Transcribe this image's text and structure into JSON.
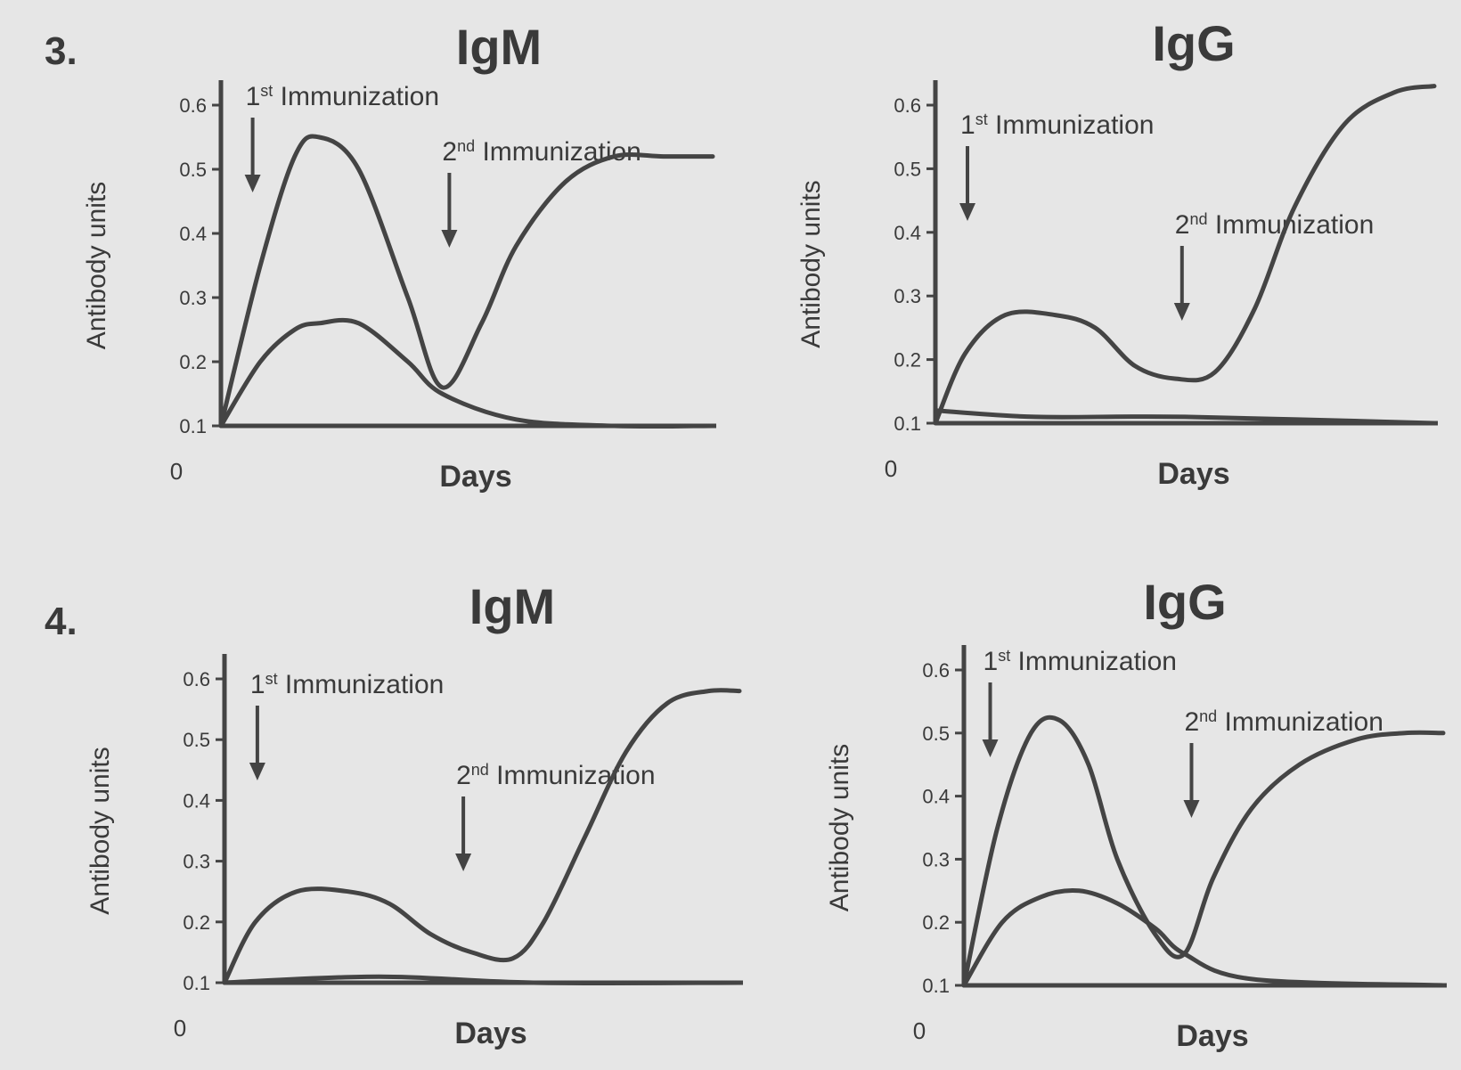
{
  "chart_data": [
    {
      "type": "line",
      "question_number": "3.",
      "title": "IgM",
      "xlabel": "Days",
      "ylabel": "Antibody units",
      "x_tick_labels": [
        "0"
      ],
      "y_ticks": [
        "0.1",
        "0.2",
        "0.3",
        "0.4",
        "0.5",
        "0.6"
      ],
      "ylim": [
        0.1,
        0.6
      ],
      "xlim": [
        0,
        100
      ],
      "annotations": [
        {
          "text": "1st Immunization",
          "x": 5
        },
        {
          "text": "2nd Immunization",
          "x": 45
        }
      ],
      "series": [
        {
          "x": [
            0,
            8,
            15,
            20,
            28,
            38,
            45,
            53,
            60,
            70,
            80,
            90,
            100
          ],
          "y": [
            0.1,
            0.35,
            0.52,
            0.55,
            0.5,
            0.3,
            0.16,
            0.26,
            0.38,
            0.48,
            0.52,
            0.52,
            0.52
          ]
        },
        {
          "x": [
            0,
            8,
            15,
            20,
            28,
            38,
            45,
            60,
            80,
            100
          ],
          "y": [
            0.1,
            0.2,
            0.25,
            0.26,
            0.26,
            0.2,
            0.15,
            0.11,
            0.1,
            0.1
          ]
        }
      ]
    },
    {
      "type": "line",
      "title": "IgG",
      "xlabel": "Days",
      "ylabel": "Antibody units",
      "x_tick_labels": [
        "0"
      ],
      "y_ticks": [
        "0.1",
        "0.2",
        "0.3",
        "0.4",
        "0.5",
        "0.6"
      ],
      "ylim": [
        0.1,
        0.6
      ],
      "xlim": [
        0,
        100
      ],
      "annotations": [
        {
          "text": "1st Immunization",
          "x": 5
        },
        {
          "text": "2nd Immunization",
          "x": 48
        }
      ],
      "series": [
        {
          "x": [
            0,
            6,
            14,
            24,
            32,
            40,
            48,
            56,
            64,
            72,
            82,
            92,
            100
          ],
          "y": [
            0.1,
            0.21,
            0.27,
            0.27,
            0.25,
            0.19,
            0.17,
            0.18,
            0.28,
            0.44,
            0.57,
            0.62,
            0.63
          ]
        },
        {
          "x": [
            0,
            20,
            50,
            100
          ],
          "y": [
            0.12,
            0.11,
            0.11,
            0.1
          ]
        }
      ]
    },
    {
      "type": "line",
      "question_number": "4.",
      "title": "IgM",
      "xlabel": "Days",
      "ylabel": "Antibody units",
      "x_tick_labels": [
        "0"
      ],
      "y_ticks": [
        "0.1",
        "0.2",
        "0.3",
        "0.4",
        "0.5",
        "0.6"
      ],
      "ylim": [
        0.1,
        0.6
      ],
      "xlim": [
        0,
        100
      ],
      "annotations": [
        {
          "text": "1st Immunization",
          "x": 5
        },
        {
          "text": "2nd Immunization",
          "x": 45
        }
      ],
      "series": [
        {
          "x": [
            0,
            6,
            14,
            24,
            32,
            40,
            48,
            56,
            62,
            70,
            78,
            86,
            94,
            100
          ],
          "y": [
            0.1,
            0.2,
            0.25,
            0.25,
            0.23,
            0.18,
            0.15,
            0.14,
            0.2,
            0.34,
            0.48,
            0.56,
            0.58,
            0.58
          ]
        },
        {
          "x": [
            0,
            30,
            60,
            100
          ],
          "y": [
            0.1,
            0.11,
            0.1,
            0.1
          ]
        }
      ]
    },
    {
      "type": "line",
      "title": "IgG",
      "xlabel": "Days",
      "ylabel": "Antibody units",
      "x_tick_labels": [
        "0"
      ],
      "y_ticks": [
        "0.1",
        "0.2",
        "0.3",
        "0.4",
        "0.5",
        "0.6"
      ],
      "ylim": [
        0.1,
        0.6
      ],
      "xlim": [
        0,
        100
      ],
      "annotations": [
        {
          "text": "1st Immunization",
          "x": 4
        },
        {
          "text": "2nd Immunization",
          "x": 46
        }
      ],
      "series": [
        {
          "x": [
            0,
            7,
            14,
            20,
            26,
            32,
            40,
            46,
            52,
            60,
            70,
            82,
            92,
            100
          ],
          "y": [
            0.1,
            0.35,
            0.5,
            0.52,
            0.45,
            0.3,
            0.18,
            0.15,
            0.27,
            0.38,
            0.45,
            0.49,
            0.5,
            0.5
          ]
        },
        {
          "x": [
            0,
            8,
            16,
            24,
            32,
            40,
            46,
            60,
            100
          ],
          "y": [
            0.1,
            0.2,
            0.24,
            0.25,
            0.23,
            0.19,
            0.15,
            0.11,
            0.1
          ]
        }
      ]
    }
  ]
}
